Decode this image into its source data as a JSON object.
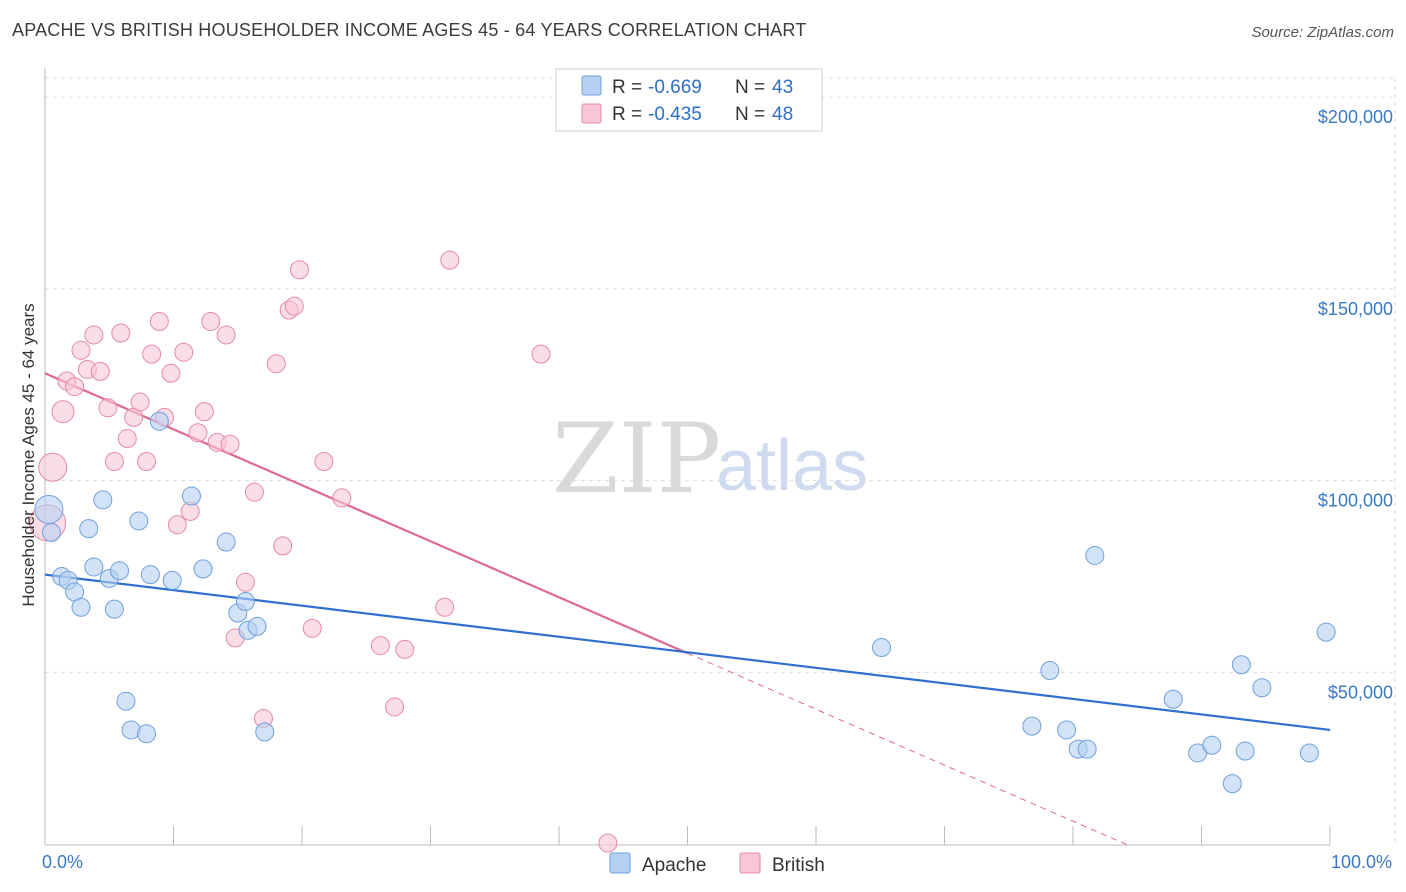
{
  "header": {
    "title": "APACHE VS BRITISH HOUSEHOLDER INCOME AGES 45 - 64 YEARS CORRELATION CHART",
    "source": "Source: ZipAtlas.com"
  },
  "watermark": {
    "zip": "ZIP",
    "atlas": "atlas"
  },
  "legend": {
    "r_label": "R =",
    "n_label": "N =",
    "apache": {
      "r": "-0.669",
      "n": "43"
    },
    "british": {
      "r": "-0.435",
      "n": "48"
    }
  },
  "colors": {
    "apache_fill": "#b5d0f2",
    "apache_stroke": "#6ea0dc",
    "apache_line": "#2f6fd0",
    "british_fill": "#f8c6d4",
    "british_stroke": "#e58aa6",
    "british_line": "#e0678f",
    "grid": "#dddddd",
    "axis_text": "#3a78c8"
  },
  "chart_data": {
    "type": "scatter",
    "title": "APACHE VS BRITISH HOUSEHOLDER INCOME AGES 45 - 64 YEARS CORRELATION CHART",
    "ylabel": "Householder Income Ages 45 - 64 years",
    "xlabel": "",
    "x_tick_labels": [
      "0.0%",
      "100.0%"
    ],
    "y_tick_labels": [
      "$50,000",
      "$100,000",
      "$150,000",
      "$200,000"
    ],
    "xlim": [
      0,
      100
    ],
    "ylim": [
      5000,
      205000
    ],
    "grid": true,
    "legend_position": "top-center",
    "series": [
      {
        "name": "Apache",
        "trend": {
          "x": [
            0,
            100
          ],
          "y": [
            75500,
            35000
          ]
        },
        "points": [
          {
            "x": 0.3,
            "y": 92500,
            "s": 14
          },
          {
            "x": 0.5,
            "y": 86500,
            "s": 9
          },
          {
            "x": 1.3,
            "y": 75000,
            "s": 9
          },
          {
            "x": 1.8,
            "y": 74000,
            "s": 9
          },
          {
            "x": 2.3,
            "y": 71000,
            "s": 9
          },
          {
            "x": 2.8,
            "y": 67000,
            "s": 9
          },
          {
            "x": 3.4,
            "y": 87500,
            "s": 9
          },
          {
            "x": 3.8,
            "y": 77500,
            "s": 9
          },
          {
            "x": 4.5,
            "y": 95000,
            "s": 9
          },
          {
            "x": 5.0,
            "y": 74500,
            "s": 9
          },
          {
            "x": 5.4,
            "y": 66500,
            "s": 9
          },
          {
            "x": 5.8,
            "y": 76500,
            "s": 9
          },
          {
            "x": 6.3,
            "y": 42500,
            "s": 9
          },
          {
            "x": 6.7,
            "y": 35000,
            "s": 9
          },
          {
            "x": 7.3,
            "y": 89500,
            "s": 9
          },
          {
            "x": 7.9,
            "y": 34000,
            "s": 9
          },
          {
            "x": 8.2,
            "y": 75500,
            "s": 9
          },
          {
            "x": 8.9,
            "y": 115500,
            "s": 9
          },
          {
            "x": 9.9,
            "y": 74000,
            "s": 9
          },
          {
            "x": 11.4,
            "y": 96000,
            "s": 9
          },
          {
            "x": 12.3,
            "y": 77000,
            "s": 9
          },
          {
            "x": 14.1,
            "y": 84000,
            "s": 9
          },
          {
            "x": 15.0,
            "y": 65500,
            "s": 9
          },
          {
            "x": 15.6,
            "y": 68500,
            "s": 9
          },
          {
            "x": 15.8,
            "y": 61000,
            "s": 9
          },
          {
            "x": 16.5,
            "y": 62000,
            "s": 9
          },
          {
            "x": 17.1,
            "y": 34500,
            "s": 9
          },
          {
            "x": 65.1,
            "y": 56500,
            "s": 9
          },
          {
            "x": 76.8,
            "y": 36000,
            "s": 9
          },
          {
            "x": 78.2,
            "y": 50500,
            "s": 9
          },
          {
            "x": 79.5,
            "y": 35000,
            "s": 9
          },
          {
            "x": 80.4,
            "y": 30000,
            "s": 9
          },
          {
            "x": 81.1,
            "y": 30000,
            "s": 9
          },
          {
            "x": 81.7,
            "y": 80500,
            "s": 9
          },
          {
            "x": 87.8,
            "y": 43000,
            "s": 9
          },
          {
            "x": 89.7,
            "y": 29000,
            "s": 9
          },
          {
            "x": 90.8,
            "y": 31000,
            "s": 9
          },
          {
            "x": 92.4,
            "y": 21000,
            "s": 9
          },
          {
            "x": 93.1,
            "y": 52000,
            "s": 9
          },
          {
            "x": 93.4,
            "y": 29500,
            "s": 9
          },
          {
            "x": 94.7,
            "y": 46000,
            "s": 9
          },
          {
            "x": 98.4,
            "y": 29000,
            "s": 9
          },
          {
            "x": 99.7,
            "y": 60500,
            "s": 9
          }
        ]
      },
      {
        "name": "British",
        "trend": {
          "x": [
            0,
            50
          ],
          "y": [
            128000,
            55000
          ]
        },
        "trend_dashed": {
          "x": [
            50,
            100
          ],
          "y": [
            55000,
            -18000
          ]
        },
        "points": [
          {
            "x": 0.2,
            "y": 89000,
            "s": 18
          },
          {
            "x": 0.6,
            "y": 103500,
            "s": 14
          },
          {
            "x": 1.4,
            "y": 118000,
            "s": 11
          },
          {
            "x": 1.7,
            "y": 126000,
            "s": 9
          },
          {
            "x": 2.3,
            "y": 124500,
            "s": 9
          },
          {
            "x": 2.8,
            "y": 134000,
            "s": 9
          },
          {
            "x": 3.3,
            "y": 129000,
            "s": 9
          },
          {
            "x": 3.8,
            "y": 138000,
            "s": 9
          },
          {
            "x": 4.3,
            "y": 128500,
            "s": 9
          },
          {
            "x": 4.9,
            "y": 119000,
            "s": 9
          },
          {
            "x": 5.4,
            "y": 105000,
            "s": 9
          },
          {
            "x": 5.9,
            "y": 138500,
            "s": 9
          },
          {
            "x": 6.4,
            "y": 111000,
            "s": 9
          },
          {
            "x": 6.9,
            "y": 116500,
            "s": 9
          },
          {
            "x": 7.4,
            "y": 120500,
            "s": 9
          },
          {
            "x": 7.9,
            "y": 105000,
            "s": 9
          },
          {
            "x": 8.3,
            "y": 133000,
            "s": 9
          },
          {
            "x": 8.9,
            "y": 141500,
            "s": 9
          },
          {
            "x": 9.3,
            "y": 116500,
            "s": 9
          },
          {
            "x": 9.8,
            "y": 128000,
            "s": 9
          },
          {
            "x": 10.3,
            "y": 88500,
            "s": 9
          },
          {
            "x": 10.8,
            "y": 133500,
            "s": 9
          },
          {
            "x": 11.3,
            "y": 92000,
            "s": 9
          },
          {
            "x": 11.9,
            "y": 112500,
            "s": 9
          },
          {
            "x": 12.4,
            "y": 118000,
            "s": 9
          },
          {
            "x": 12.9,
            "y": 141500,
            "s": 9
          },
          {
            "x": 13.4,
            "y": 110000,
            "s": 9
          },
          {
            "x": 14.1,
            "y": 138000,
            "s": 9
          },
          {
            "x": 14.4,
            "y": 109500,
            "s": 9
          },
          {
            "x": 14.8,
            "y": 59000,
            "s": 9
          },
          {
            "x": 15.6,
            "y": 73500,
            "s": 9
          },
          {
            "x": 16.3,
            "y": 97000,
            "s": 9
          },
          {
            "x": 17.0,
            "y": 38000,
            "s": 9
          },
          {
            "x": 18.0,
            "y": 130500,
            "s": 9
          },
          {
            "x": 18.5,
            "y": 83000,
            "s": 9
          },
          {
            "x": 19.0,
            "y": 144500,
            "s": 9
          },
          {
            "x": 19.4,
            "y": 145500,
            "s": 9
          },
          {
            "x": 19.8,
            "y": 155000,
            "s": 9
          },
          {
            "x": 20.8,
            "y": 61500,
            "s": 9
          },
          {
            "x": 21.7,
            "y": 105000,
            "s": 9
          },
          {
            "x": 23.1,
            "y": 95500,
            "s": 9
          },
          {
            "x": 26.1,
            "y": 57000,
            "s": 9
          },
          {
            "x": 27.2,
            "y": 41000,
            "s": 9
          },
          {
            "x": 28.0,
            "y": 56000,
            "s": 9
          },
          {
            "x": 31.1,
            "y": 67000,
            "s": 9
          },
          {
            "x": 31.5,
            "y": 157500,
            "s": 9
          },
          {
            "x": 38.6,
            "y": 133000,
            "s": 9
          },
          {
            "x": 43.8,
            "y": 5500,
            "s": 9
          }
        ]
      }
    ]
  }
}
